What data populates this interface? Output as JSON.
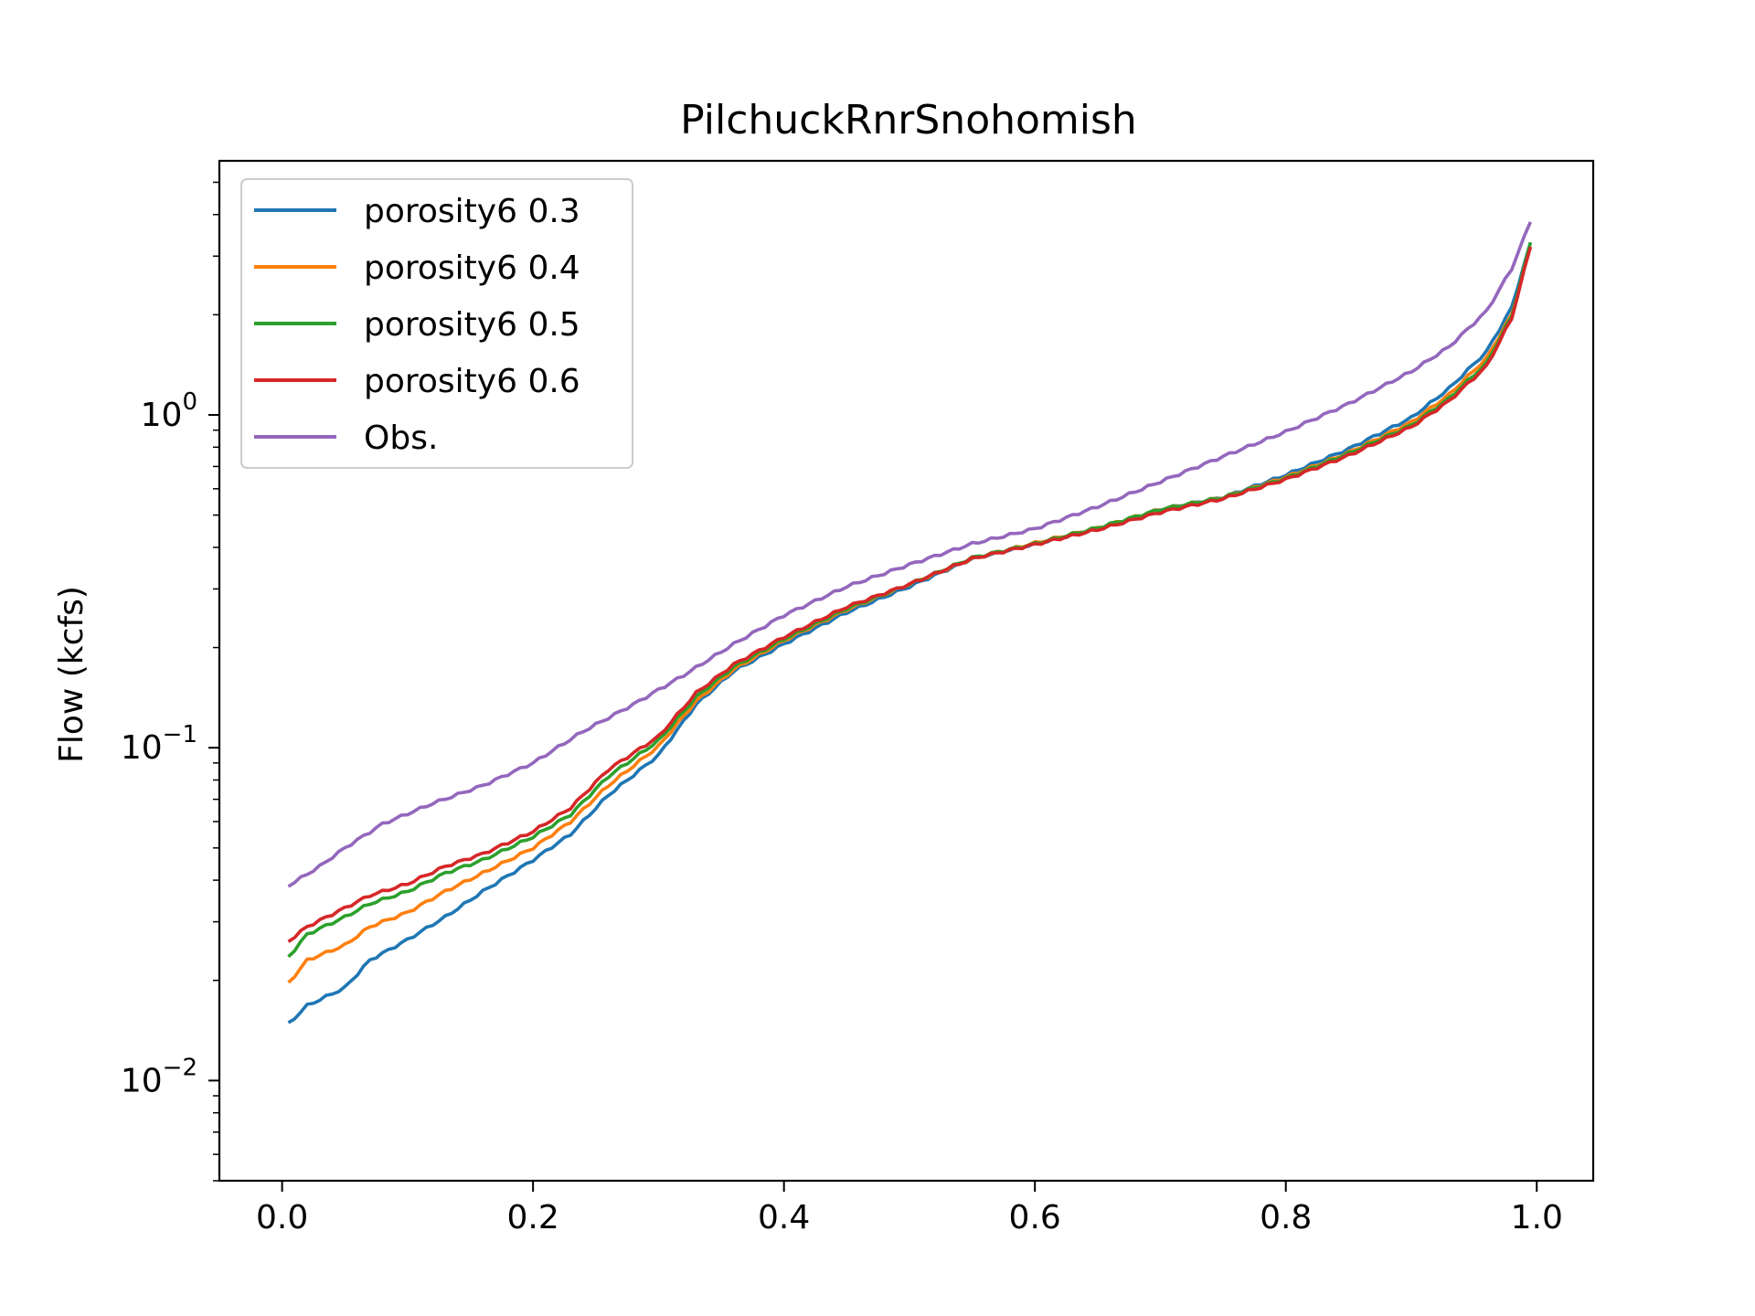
{
  "chart_data": {
    "type": "line",
    "title": "PilchuckRnrSnohomish",
    "xlabel": "",
    "ylabel": "Flow (kcfs)",
    "yscale": "log",
    "xlim": [
      -0.05,
      1.045
    ],
    "ylim": [
      0.005,
      5.8
    ],
    "xticks": [
      0.0,
      0.2,
      0.4,
      0.6,
      0.8,
      1.0
    ],
    "xtick_labels": [
      "0.0",
      "0.2",
      "0.4",
      "0.6",
      "0.8",
      "1.0"
    ],
    "yticks": [
      0.01,
      0.1,
      1
    ],
    "ytick_labels": [
      {
        "base": "10",
        "exp": "−2"
      },
      {
        "base": "10",
        "exp": "−1"
      },
      {
        "base": "10",
        "exp": "0"
      }
    ],
    "legend_position": "upper-left",
    "grid": false,
    "series": [
      {
        "name": "porosity6 0.3",
        "color": "#1f77b4",
        "x": [
          0.005,
          0.02,
          0.05,
          0.07,
          0.1,
          0.13,
          0.16,
          0.2,
          0.23,
          0.26,
          0.3,
          0.33,
          0.36,
          0.4,
          0.45,
          0.5,
          0.55,
          0.6,
          0.65,
          0.7,
          0.75,
          0.8,
          0.85,
          0.9,
          0.93,
          0.96,
          0.98,
          0.995
        ],
        "y": [
          0.0148,
          0.0168,
          0.019,
          0.023,
          0.0265,
          0.031,
          0.037,
          0.046,
          0.055,
          0.072,
          0.095,
          0.135,
          0.17,
          0.205,
          0.255,
          0.305,
          0.37,
          0.41,
          0.455,
          0.52,
          0.565,
          0.66,
          0.79,
          0.98,
          1.2,
          1.55,
          2.1,
          3.3
        ]
      },
      {
        "name": "porosity6 0.4",
        "color": "#ff7f0e",
        "x": [
          0.005,
          0.02,
          0.05,
          0.07,
          0.1,
          0.13,
          0.16,
          0.2,
          0.23,
          0.26,
          0.3,
          0.33,
          0.36,
          0.4,
          0.45,
          0.5,
          0.55,
          0.6,
          0.65,
          0.7,
          0.75,
          0.8,
          0.85,
          0.9,
          0.93,
          0.96,
          0.98,
          0.995
        ],
        "y": [
          0.0196,
          0.023,
          0.0255,
          0.029,
          0.032,
          0.037,
          0.042,
          0.05,
          0.06,
          0.077,
          0.101,
          0.138,
          0.172,
          0.21,
          0.26,
          0.31,
          0.37,
          0.412,
          0.458,
          0.52,
          0.565,
          0.65,
          0.77,
          0.95,
          1.15,
          1.48,
          2.0,
          3.2
        ]
      },
      {
        "name": "porosity6 0.5",
        "color": "#2ca02c",
        "x": [
          0.005,
          0.02,
          0.05,
          0.07,
          0.1,
          0.13,
          0.16,
          0.2,
          0.23,
          0.26,
          0.3,
          0.33,
          0.36,
          0.4,
          0.45,
          0.5,
          0.55,
          0.6,
          0.65,
          0.7,
          0.75,
          0.8,
          0.85,
          0.9,
          0.93,
          0.96,
          0.98,
          0.995
        ],
        "y": [
          0.0235,
          0.0275,
          0.031,
          0.034,
          0.037,
          0.042,
          0.046,
          0.054,
          0.063,
          0.082,
          0.105,
          0.142,
          0.175,
          0.212,
          0.262,
          0.31,
          0.372,
          0.41,
          0.458,
          0.52,
          0.565,
          0.645,
          0.765,
          0.93,
          1.12,
          1.43,
          1.98,
          3.3
        ]
      },
      {
        "name": "porosity6 0.6",
        "color": "#d62728",
        "x": [
          0.005,
          0.02,
          0.05,
          0.07,
          0.1,
          0.13,
          0.16,
          0.2,
          0.23,
          0.26,
          0.3,
          0.33,
          0.36,
          0.4,
          0.45,
          0.5,
          0.55,
          0.6,
          0.65,
          0.7,
          0.75,
          0.8,
          0.85,
          0.9,
          0.93,
          0.96,
          0.98,
          0.995
        ],
        "y": [
          0.0262,
          0.029,
          0.033,
          0.036,
          0.039,
          0.044,
          0.048,
          0.056,
          0.066,
          0.086,
          0.108,
          0.146,
          0.178,
          0.215,
          0.265,
          0.31,
          0.37,
          0.408,
          0.452,
          0.51,
          0.56,
          0.64,
          0.755,
          0.92,
          1.1,
          1.4,
          1.95,
          3.2
        ]
      },
      {
        "name": "Obs.",
        "color": "#9467bd",
        "x": [
          0.005,
          0.03,
          0.05,
          0.08,
          0.12,
          0.16,
          0.2,
          0.24,
          0.28,
          0.32,
          0.36,
          0.4,
          0.45,
          0.5,
          0.55,
          0.6,
          0.65,
          0.7,
          0.75,
          0.8,
          0.85,
          0.9,
          0.93,
          0.96,
          0.98,
          0.995
        ],
        "y": [
          0.0385,
          0.044,
          0.05,
          0.059,
          0.068,
          0.077,
          0.09,
          0.112,
          0.135,
          0.165,
          0.205,
          0.25,
          0.305,
          0.355,
          0.41,
          0.455,
          0.53,
          0.63,
          0.75,
          0.89,
          1.08,
          1.35,
          1.6,
          2.05,
          2.75,
          3.8
        ]
      }
    ]
  }
}
